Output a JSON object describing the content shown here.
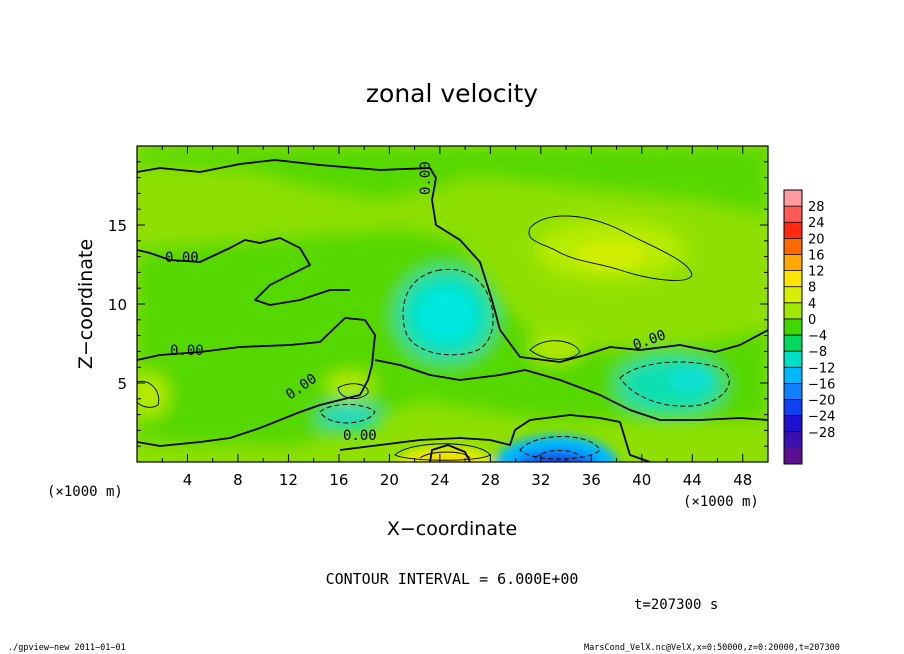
{
  "chart_data": {
    "type": "heatmap",
    "title": "zonal velocity",
    "xlabel": "X−coordinate",
    "ylabel": "Z−coordinate",
    "x_unit": "(×1000 m)",
    "y_unit": "(×1000 m)",
    "xlim": [
      0,
      50
    ],
    "ylim": [
      0,
      20
    ],
    "x_ticks": [
      "4",
      "8",
      "12",
      "16",
      "20",
      "24",
      "28",
      "32",
      "36",
      "40",
      "44",
      "48"
    ],
    "y_ticks": [
      "5",
      "10",
      "15"
    ],
    "contour_label": "0.00",
    "contour_interval_text": "CONTOUR INTERVAL = 6.000E+00",
    "time_text": "t=207300 s",
    "footer_left": "./gpview−new  2011−01−01",
    "footer_right": "MarsCond_VelX.nc@VelX,x=0:50000,z=0:20000,t=207300",
    "colorbar": {
      "labels": [
        "28",
        "24",
        "20",
        "16",
        "12",
        "8",
        "4",
        "0",
        "−4",
        "−8",
        "−12",
        "−16",
        "−20",
        "−24",
        "−28"
      ],
      "colors": [
        "#ff9aa0",
        "#ff5a55",
        "#ff2a10",
        "#ff6a00",
        "#ffa800",
        "#ffe600",
        "#d8f000",
        "#9fe800",
        "#3ed800",
        "#00d860",
        "#00e0c8",
        "#00b8ff",
        "#1080ff",
        "#1040f0",
        "#2010d0",
        "#3a10b0",
        "#5a1090"
      ]
    },
    "features": [
      {
        "type": "jet",
        "sign": "negative",
        "x": 34,
        "z": 0.3,
        "value": -16
      },
      {
        "type": "jet",
        "sign": "positive",
        "x": 24,
        "z": 0.3,
        "value": 10
      },
      {
        "type": "region",
        "sign": "negative",
        "x": 23.5,
        "z": 9.5,
        "value": -10
      },
      {
        "type": "region",
        "sign": "negative",
        "x": 44,
        "z": 5,
        "value": -9
      },
      {
        "type": "region",
        "sign": "negative",
        "x": 16.5,
        "z": 2.6,
        "value": -9
      },
      {
        "type": "region",
        "sign": "positive",
        "x": 36,
        "z": 13,
        "value": 7
      },
      {
        "type": "region",
        "sign": "positive",
        "x": 32,
        "z": 7,
        "value": 7
      },
      {
        "type": "region",
        "sign": "positive",
        "x": 1,
        "z": 4.5,
        "value": 6
      }
    ]
  }
}
